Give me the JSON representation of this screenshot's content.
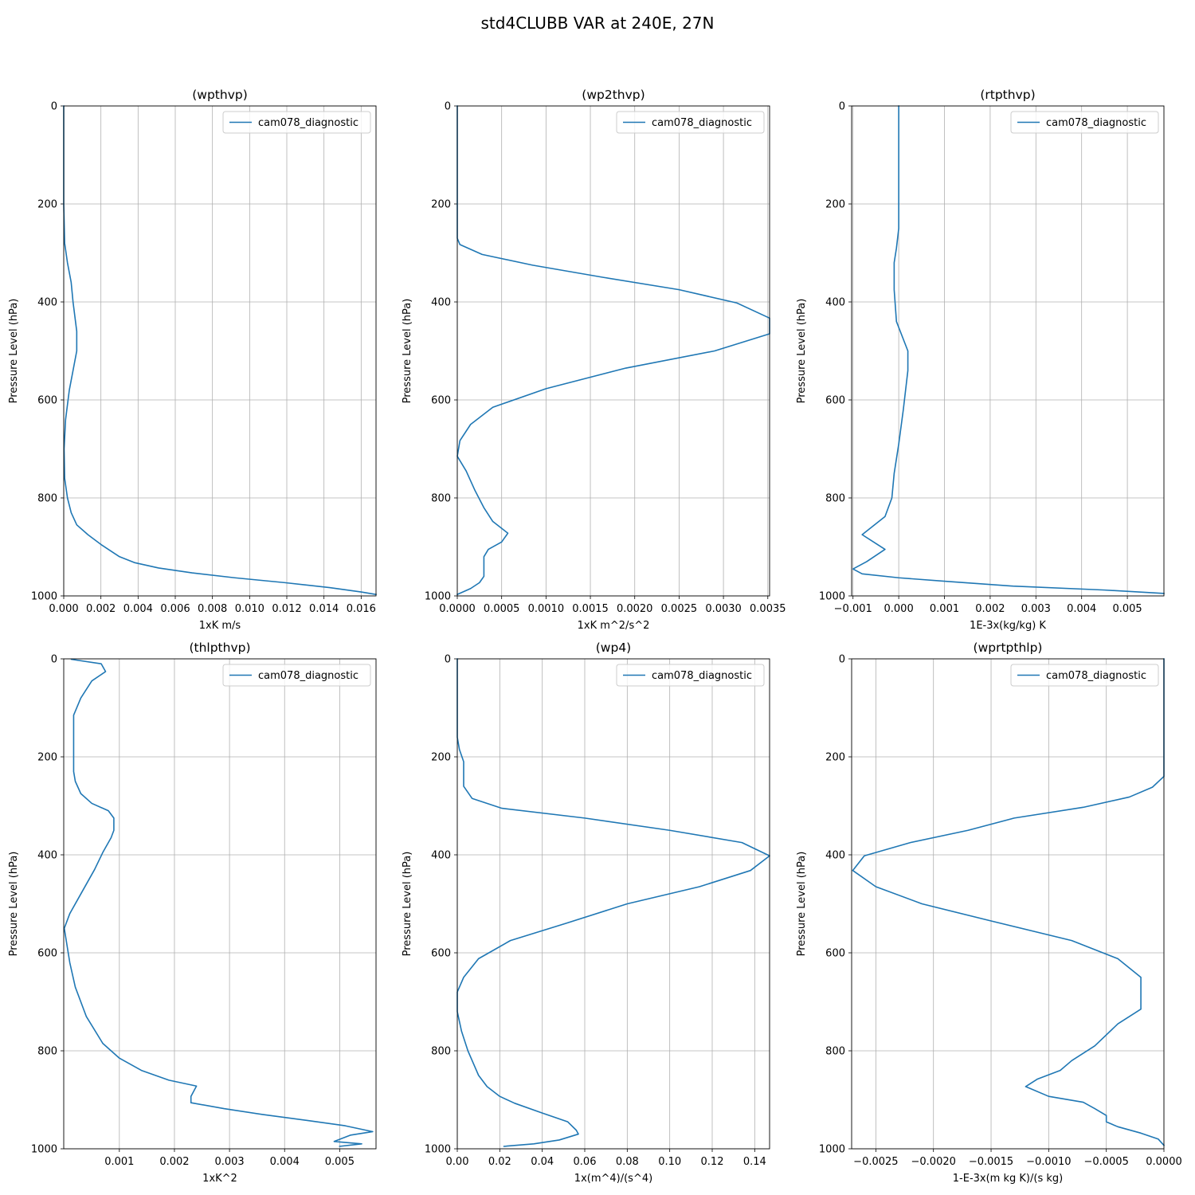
{
  "figure": {
    "suptitle": "std4CLUBB VAR at 240E, 27N"
  },
  "style": {
    "line_color": "#1f77b4",
    "grid_color": "#b0b0b0"
  },
  "chart_data": [
    {
      "type": "line",
      "title": "(wpthvp)",
      "xlabel": "1xK m/s",
      "ylabel": "Pressure Level (hPa)",
      "xlim": [
        0.0,
        0.0168
      ],
      "ylim": [
        1000,
        0
      ],
      "xticks": [
        "0.000",
        "0.002",
        "0.004",
        "0.006",
        "0.008",
        "0.010",
        "0.012",
        "0.014",
        "0.016"
      ],
      "xtick_values": [
        0.0,
        0.002,
        0.004,
        0.006,
        0.008,
        0.01,
        0.012,
        0.014,
        0.016
      ],
      "yticks": [
        "0",
        "200",
        "400",
        "600",
        "800",
        "1000"
      ],
      "ytick_values": [
        0,
        200,
        400,
        600,
        800,
        1000
      ],
      "grid": true,
      "legend": "upper right",
      "series": [
        {
          "name": "cam078_diagnostic",
          "points": [
            [
              0.0,
              0
            ],
            [
              0.0,
              200
            ],
            [
              5e-05,
              280
            ],
            [
              0.0002,
              320
            ],
            [
              0.0004,
              360
            ],
            [
              0.0005,
              400
            ],
            [
              0.0007,
              460
            ],
            [
              0.0007,
              500
            ],
            [
              0.0005,
              540
            ],
            [
              0.0003,
              580
            ],
            [
              0.0001,
              640
            ],
            [
              2e-05,
              700
            ],
            [
              5e-05,
              760
            ],
            [
              0.0002,
              800
            ],
            [
              0.0004,
              830
            ],
            [
              0.0007,
              855
            ],
            [
              0.0013,
              875
            ],
            [
              0.002,
              895
            ],
            [
              0.0026,
              910
            ],
            [
              0.003,
              920
            ],
            [
              0.0038,
              932
            ],
            [
              0.0051,
              943
            ],
            [
              0.0069,
              953
            ],
            [
              0.0092,
              963
            ],
            [
              0.0119,
              973
            ],
            [
              0.0143,
              983
            ],
            [
              0.016,
              992
            ],
            [
              0.0168,
              997
            ]
          ]
        }
      ]
    },
    {
      "type": "line",
      "title": "(wp2thvp)",
      "xlabel": "1xK m^2/s^2",
      "ylabel": "Pressure Level (hPa)",
      "xlim": [
        0.0,
        0.00352
      ],
      "ylim": [
        1000,
        0
      ],
      "xticks": [
        "0.0000",
        "0.0005",
        "0.0010",
        "0.0015",
        "0.0020",
        "0.0025",
        "0.0030",
        "0.0035"
      ],
      "xtick_values": [
        0.0,
        0.0005,
        0.001,
        0.0015,
        0.002,
        0.0025,
        0.003,
        0.0035
      ],
      "yticks": [
        "0",
        "200",
        "400",
        "600",
        "800",
        "1000"
      ],
      "ytick_values": [
        0,
        200,
        400,
        600,
        800,
        1000
      ],
      "grid": true,
      "legend": "upper right",
      "series": [
        {
          "name": "cam078_diagnostic",
          "points": [
            [
              0.0,
              0
            ],
            [
              0.0,
              250
            ],
            [
              0.0,
              270
            ],
            [
              3e-05,
              283
            ],
            [
              0.00028,
              303
            ],
            [
              0.00085,
              325
            ],
            [
              0.00165,
              350
            ],
            [
              0.0025,
              375
            ],
            [
              0.00315,
              402
            ],
            [
              0.00352,
              433
            ],
            [
              0.00352,
              465
            ],
            [
              0.0029,
              500
            ],
            [
              0.0019,
              535
            ],
            [
              0.001,
              577
            ],
            [
              0.0004,
              615
            ],
            [
              0.00015,
              650
            ],
            [
              3e-05,
              683
            ],
            [
              0.0,
              715
            ],
            [
              0.0001,
              745
            ],
            [
              0.0002,
              785
            ],
            [
              0.0003,
              820
            ],
            [
              0.0004,
              848
            ],
            [
              0.00057,
              872
            ],
            [
              0.0005,
              890
            ],
            [
              0.00035,
              905
            ],
            [
              0.0003,
              920
            ],
            [
              0.0003,
              930
            ],
            [
              0.0003,
              945
            ],
            [
              0.0003,
              960
            ],
            [
              0.00025,
              973
            ],
            [
              0.00015,
              985
            ],
            [
              0.0,
              997
            ]
          ]
        }
      ]
    },
    {
      "type": "line",
      "title": "(rtpthvp)",
      "xlabel": "1E-3x(kg/kg) K",
      "ylabel": "Pressure Level (hPa)",
      "xlim": [
        -0.00103,
        0.0058
      ],
      "ylim": [
        1000,
        0
      ],
      "xticks": [
        "−0.001",
        "0.000",
        "0.001",
        "0.002",
        "0.003",
        "0.004",
        "0.005"
      ],
      "xtick_values": [
        -0.001,
        0.0,
        0.001,
        0.002,
        0.003,
        0.004,
        0.005
      ],
      "yticks": [
        "0",
        "200",
        "400",
        "600",
        "800",
        "1000"
      ],
      "ytick_values": [
        0,
        200,
        400,
        600,
        800,
        1000
      ],
      "grid": true,
      "legend": "upper right",
      "series": [
        {
          "name": "cam078_diagnostic",
          "points": [
            [
              0.0,
              0
            ],
            [
              0.0,
              250
            ],
            [
              -5e-05,
              290
            ],
            [
              -0.0001,
              320
            ],
            [
              -0.0001,
              375
            ],
            [
              -5e-05,
              440
            ],
            [
              0.0002,
              500
            ],
            [
              0.0002,
              540
            ],
            [
              0.0001,
              620
            ],
            [
              0.0,
              690
            ],
            [
              -0.0001,
              750
            ],
            [
              -0.00015,
              800
            ],
            [
              -0.0003,
              838
            ],
            [
              -0.0008,
              875
            ],
            [
              -0.0005,
              893
            ],
            [
              -0.0003,
              905
            ],
            [
              -0.0007,
              930
            ],
            [
              -0.001,
              945
            ],
            [
              -0.0008,
              955
            ],
            [
              0.0,
              963
            ],
            [
              0.001,
              970
            ],
            [
              0.0025,
              980
            ],
            [
              0.0045,
              988
            ],
            [
              0.0058,
              995
            ]
          ]
        }
      ]
    },
    {
      "type": "line",
      "title": "(thlpthvp)",
      "xlabel": "1xK^2",
      "ylabel": "Pressure Level (hPa)",
      "xlim": [
        -1e-05,
        0.00566
      ],
      "ylim": [
        1000,
        0
      ],
      "xticks": [
        "0.001",
        "0.002",
        "0.003",
        "0.004",
        "0.005"
      ],
      "xtick_values": [
        0.001,
        0.002,
        0.003,
        0.004,
        0.005
      ],
      "yticks": [
        "0",
        "200",
        "400",
        "600",
        "800",
        "1000"
      ],
      "ytick_values": [
        0,
        200,
        400,
        600,
        800,
        1000
      ],
      "grid": true,
      "legend": "upper right",
      "series": [
        {
          "name": "cam078_diagnostic",
          "points": [
            [
              0.00013,
              1
            ],
            [
              0.00067,
              10
            ],
            [
              0.00075,
              26
            ],
            [
              0.0005,
              45
            ],
            [
              0.0003,
              80
            ],
            [
              0.00017,
              115
            ],
            [
              0.00017,
              150
            ],
            [
              0.00017,
              200
            ],
            [
              0.00017,
              230
            ],
            [
              0.0002,
              250
            ],
            [
              0.0003,
              275
            ],
            [
              0.0005,
              295
            ],
            [
              0.0008,
              310
            ],
            [
              0.0009,
              325
            ],
            [
              0.0009,
              350
            ],
            [
              0.00085,
              365
            ],
            [
              0.0007,
              395
            ],
            [
              0.00055,
              430
            ],
            [
              0.0003,
              480
            ],
            [
              0.0001,
              520
            ],
            [
              0.0,
              550
            ],
            [
              0.0001,
              620
            ],
            [
              0.0002,
              670
            ],
            [
              0.0004,
              730
            ],
            [
              0.0007,
              785
            ],
            [
              0.001,
              815
            ],
            [
              0.0014,
              840
            ],
            [
              0.0019,
              860
            ],
            [
              0.0024,
              872
            ],
            [
              0.0023,
              893
            ],
            [
              0.0023,
              906
            ],
            [
              0.0029,
              918
            ],
            [
              0.0036,
              930
            ],
            [
              0.0044,
              942
            ],
            [
              0.0051,
              953
            ],
            [
              0.0056,
              965
            ],
            [
              0.0052,
              972
            ],
            [
              0.0049,
              985
            ],
            [
              0.0054,
              990
            ],
            [
              0.005,
              995
            ]
          ]
        }
      ]
    },
    {
      "type": "line",
      "title": "(wp4)",
      "xlabel": "1x(m^4)/(s^4)",
      "ylabel": "Pressure Level (hPa)",
      "xlim": [
        0.0,
        0.147
      ],
      "ylim": [
        1000,
        0
      ],
      "xticks": [
        "0.00",
        "0.02",
        "0.04",
        "0.06",
        "0.08",
        "0.10",
        "0.12",
        "0.14"
      ],
      "xtick_values": [
        0.0,
        0.02,
        0.04,
        0.06,
        0.08,
        0.1,
        0.12,
        0.14
      ],
      "yticks": [
        "0",
        "200",
        "400",
        "600",
        "800",
        "1000"
      ],
      "ytick_values": [
        0,
        200,
        400,
        600,
        800,
        1000
      ],
      "grid": true,
      "legend": "upper right",
      "series": [
        {
          "name": "cam078_diagnostic",
          "points": [
            [
              0.0,
              0
            ],
            [
              0.0,
              160
            ],
            [
              0.001,
              185
            ],
            [
              0.003,
              210
            ],
            [
              0.003,
              260
            ],
            [
              0.007,
              285
            ],
            [
              0.021,
              305
            ],
            [
              0.06,
              325
            ],
            [
              0.1,
              350
            ],
            [
              0.134,
              375
            ],
            [
              0.147,
              402
            ],
            [
              0.138,
              432
            ],
            [
              0.114,
              465
            ],
            [
              0.08,
              500
            ],
            [
              0.051,
              540
            ],
            [
              0.025,
              575
            ],
            [
              0.01,
              612
            ],
            [
              0.003,
              650
            ],
            [
              0.0,
              680
            ],
            [
              0.0,
              720
            ],
            [
              0.002,
              760
            ],
            [
              0.005,
              800
            ],
            [
              0.008,
              830
            ],
            [
              0.01,
              850
            ],
            [
              0.014,
              873
            ],
            [
              0.02,
              893
            ],
            [
              0.027,
              907
            ],
            [
              0.04,
              927
            ],
            [
              0.052,
              945
            ],
            [
              0.056,
              962
            ],
            [
              0.057,
              970
            ],
            [
              0.048,
              982
            ],
            [
              0.036,
              990
            ],
            [
              0.022,
              995
            ]
          ]
        }
      ]
    },
    {
      "type": "line",
      "title": "(wprtpthlp)",
      "xlabel": "1-E-3x(m kg K)/(s kg)",
      "ylabel": "Pressure Level (hPa)",
      "xlim": [
        -0.00271,
        0.0
      ],
      "ylim": [
        1000,
        0
      ],
      "xticks": [
        "−0.0025",
        "−0.0020",
        "−0.0015",
        "−0.0010",
        "−0.0005",
        "0.0000"
      ],
      "xtick_values": [
        -0.0025,
        -0.002,
        -0.0015,
        -0.001,
        -0.0005,
        0.0
      ],
      "yticks": [
        "0",
        "200",
        "400",
        "600",
        "800",
        "1000"
      ],
      "ytick_values": [
        0,
        200,
        400,
        600,
        800,
        1000
      ],
      "grid": true,
      "legend": "upper right",
      "series": [
        {
          "name": "cam078_diagnostic",
          "points": [
            [
              0.0,
              0
            ],
            [
              0.0,
              240
            ],
            [
              -0.0001,
              262
            ],
            [
              -0.0003,
              282
            ],
            [
              -0.0007,
              303
            ],
            [
              -0.0013,
              325
            ],
            [
              -0.0017,
              350
            ],
            [
              -0.0022,
              375
            ],
            [
              -0.0026,
              402
            ],
            [
              -0.0027,
              432
            ],
            [
              -0.0025,
              465
            ],
            [
              -0.0021,
              500
            ],
            [
              -0.0015,
              535
            ],
            [
              -0.0008,
              575
            ],
            [
              -0.0004,
              612
            ],
            [
              -0.0002,
              650
            ],
            [
              -0.0002,
              680
            ],
            [
              -0.0002,
              715
            ],
            [
              -0.0004,
              745
            ],
            [
              -0.0006,
              790
            ],
            [
              -0.0008,
              820
            ],
            [
              -0.0009,
              840
            ],
            [
              -0.0011,
              858
            ],
            [
              -0.0012,
              873
            ],
            [
              -0.001,
              893
            ],
            [
              -0.0007,
              905
            ],
            [
              -0.0006,
              918
            ],
            [
              -0.0005,
              932
            ],
            [
              -0.0005,
              945
            ],
            [
              -0.0004,
              955
            ],
            [
              -0.0002,
              968
            ],
            [
              -5e-05,
              980
            ],
            [
              0.0,
              993
            ]
          ]
        }
      ]
    }
  ]
}
